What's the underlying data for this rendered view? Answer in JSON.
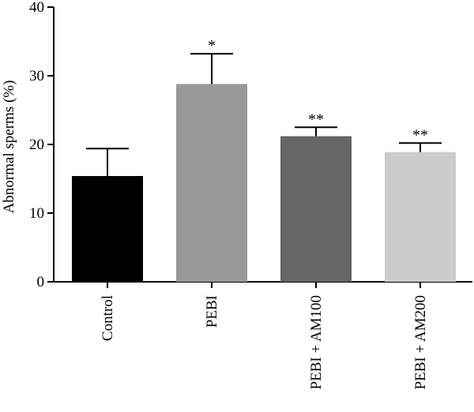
{
  "chart_data": {
    "type": "bar",
    "title": "",
    "xlabel": "",
    "ylabel": "Abnormal sperms (%)",
    "ylim": [
      0,
      40
    ],
    "yticks": [
      0,
      10,
      20,
      30,
      40
    ],
    "grid": false,
    "categories": [
      "Control",
      "PEBI",
      "PEBI + AM100",
      "PEBI + AM200"
    ],
    "values": [
      15.4,
      28.8,
      21.2,
      18.9
    ],
    "error_upper": [
      4.0,
      4.4,
      1.3,
      1.3
    ],
    "significance": [
      "",
      "*",
      "**",
      "**"
    ],
    "colors": [
      "#000000",
      "#999999",
      "#666666",
      "#cccccc"
    ]
  }
}
